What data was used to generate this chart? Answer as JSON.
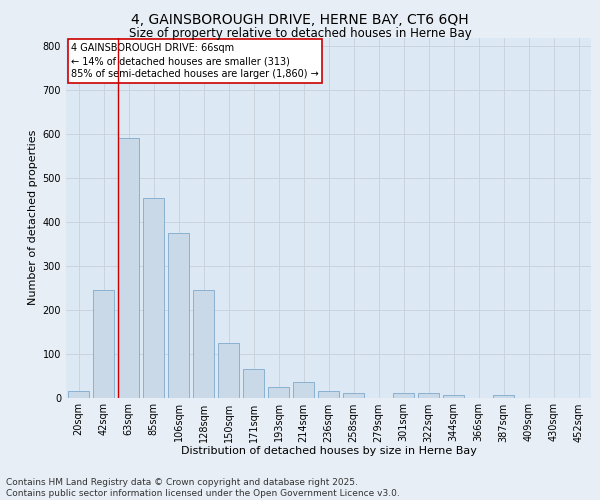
{
  "title": "4, GAINSBOROUGH DRIVE, HERNE BAY, CT6 6QH",
  "subtitle": "Size of property relative to detached houses in Herne Bay",
  "xlabel": "Distribution of detached houses by size in Herne Bay",
  "ylabel": "Number of detached properties",
  "categories": [
    "20sqm",
    "42sqm",
    "63sqm",
    "85sqm",
    "106sqm",
    "128sqm",
    "150sqm",
    "171sqm",
    "193sqm",
    "214sqm",
    "236sqm",
    "258sqm",
    "279sqm",
    "301sqm",
    "322sqm",
    "344sqm",
    "366sqm",
    "387sqm",
    "409sqm",
    "430sqm",
    "452sqm"
  ],
  "values": [
    15,
    245,
    590,
    455,
    375,
    245,
    125,
    65,
    25,
    35,
    15,
    10,
    0,
    10,
    10,
    5,
    0,
    5,
    0,
    0,
    0
  ],
  "bar_color": "#c9d9e8",
  "bar_edge_color": "#7faacc",
  "vline_index": 2,
  "vline_color": "#cc0000",
  "annotation_text": "4 GAINSBOROUGH DRIVE: 66sqm\n← 14% of detached houses are smaller (313)\n85% of semi-detached houses are larger (1,860) →",
  "annotation_box_color": "#ffffff",
  "annotation_box_edge": "#cc0000",
  "ylim": [
    0,
    820
  ],
  "yticks": [
    0,
    100,
    200,
    300,
    400,
    500,
    600,
    700,
    800
  ],
  "grid_color": "#c8d0d8",
  "bg_color": "#dce8f4",
  "fig_bg_color": "#e8eef5",
  "footer": "Contains HM Land Registry data © Crown copyright and database right 2025.\nContains public sector information licensed under the Open Government Licence v3.0.",
  "title_fontsize": 10,
  "subtitle_fontsize": 8.5,
  "xlabel_fontsize": 8,
  "ylabel_fontsize": 8,
  "tick_fontsize": 7,
  "footer_fontsize": 6.5
}
